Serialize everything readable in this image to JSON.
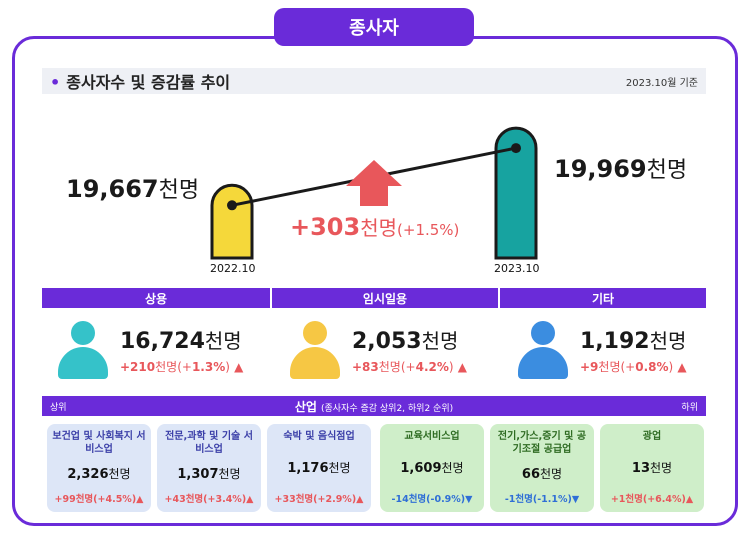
{
  "header": {
    "title": "종사자"
  },
  "section": {
    "title": "종사자수 및 증감률 추이",
    "date": "2023.10월 기준"
  },
  "colors": {
    "accent": "#6a2bd9",
    "bar_2022": "#f5d83a",
    "bar_2023": "#17a3a0",
    "up_arrow": "#e8575b",
    "down_arrow": "#2f6fd6",
    "person_regular": "#35c2c9",
    "person_temp": "#f6c744",
    "person_other": "#3b8de0"
  },
  "chart_data": {
    "type": "bar",
    "categories": [
      "2022.10",
      "2023.10"
    ],
    "values": [
      19667,
      19969
    ],
    "value_labels": [
      "19,667",
      "19,969"
    ],
    "unit": "천명",
    "change": {
      "value": "+303",
      "unit": "천명",
      "pct": "(+1.5%)"
    }
  },
  "categories": [
    {
      "name": "상용",
      "value": "16,724",
      "unit": "천명",
      "delta_value": "+210",
      "delta_rest": "천명(+",
      "delta_pct": "1.3%",
      "delta_close": ")",
      "icon": "person-icon"
    },
    {
      "name": "임시일용",
      "value": "2,053",
      "unit": "천명",
      "delta_value": "+83",
      "delta_rest": "천명(+",
      "delta_pct": "4.2%",
      "delta_close": ")",
      "icon": "person-icon"
    },
    {
      "name": "기타",
      "value": "1,192",
      "unit": "천명",
      "delta_value": "+9",
      "delta_rest": "천명(+",
      "delta_pct": "0.8%",
      "delta_close": ")",
      "icon": "person-icon"
    }
  ],
  "industry": {
    "title": "산업",
    "subtitle": "(종사자수 증감 상위2, 하위2 순위)",
    "left_label": "상위",
    "right_label": "하위",
    "items": [
      {
        "name": "보건업 및 사회복지 서비스업",
        "value": "2,326",
        "unit": "천명",
        "delta": "+99천명(+4.5%)",
        "dir": "up"
      },
      {
        "name": "전문,과학 및 기술 서비스업",
        "value": "1,307",
        "unit": "천명",
        "delta": "+43천명(+3.4%)",
        "dir": "up"
      },
      {
        "name": "숙박 및 음식점업",
        "value": "1,176",
        "unit": "천명",
        "delta": "+33천명(+2.9%)",
        "dir": "up"
      },
      {
        "name": "교육서비스업",
        "value": "1,609",
        "unit": "천명",
        "delta": "-14천명(-0.9%)",
        "dir": "down"
      },
      {
        "name": "전기,가스,증기 및 공기조절 공급업",
        "value": "66",
        "unit": "천명",
        "delta": "-1천명(-1.1%)",
        "dir": "down"
      },
      {
        "name": "광업",
        "value": "13",
        "unit": "천명",
        "delta": "+1천명(+6.4%)",
        "dir": "down"
      }
    ]
  }
}
